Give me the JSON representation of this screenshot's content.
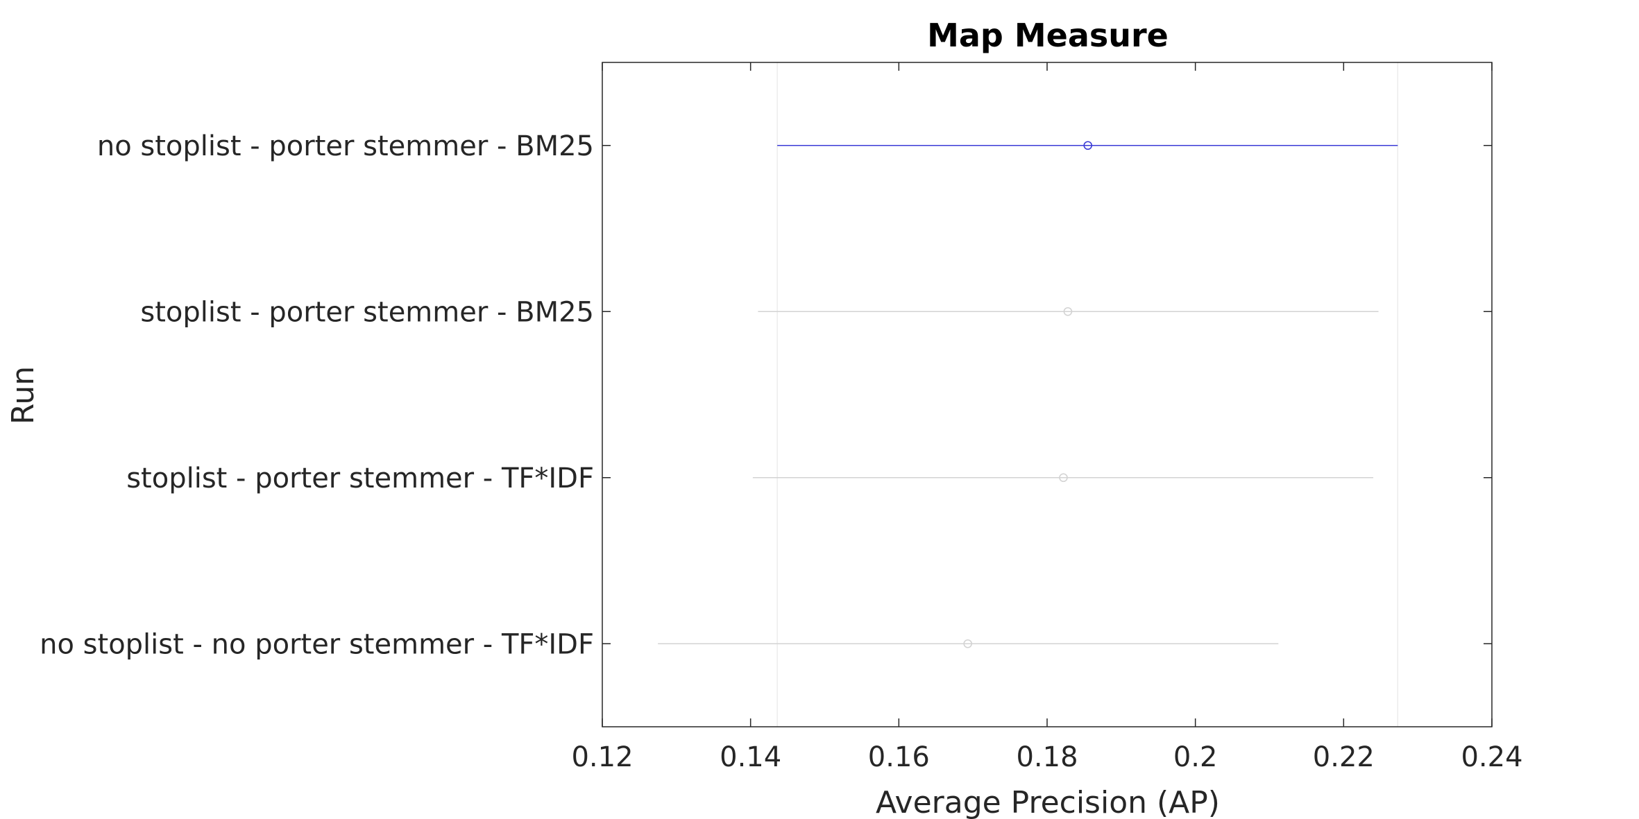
{
  "chart_data": {
    "type": "scatter",
    "title": "Map Measure",
    "xlabel": "Average Precision (AP)",
    "ylabel": "Run",
    "xlim": [
      0.12,
      0.24
    ],
    "xticks": [
      "0.12",
      "0.14",
      "0.16",
      "0.18",
      "0.2",
      "0.22",
      "0.24"
    ],
    "highlight_limits": [
      0.1436,
      0.2273
    ],
    "grid": false,
    "colors": {
      "highlight": "#3b3bd6",
      "muted": "#d3d3d3",
      "axis": "#262626",
      "reference": "#ececec"
    },
    "runs": [
      {
        "label": "no stoplist - porter stemmer - BM25",
        "mean": 0.1855,
        "lower": 0.1436,
        "upper": 0.2273,
        "highlight": true
      },
      {
        "label": "stoplist - porter stemmer - BM25",
        "mean": 0.1828,
        "lower": 0.141,
        "upper": 0.2247,
        "highlight": false
      },
      {
        "label": "stoplist - porter stemmer - TF*IDF",
        "mean": 0.1822,
        "lower": 0.1403,
        "upper": 0.224,
        "highlight": false
      },
      {
        "label": "no stoplist - no porter stemmer - TF*IDF",
        "mean": 0.1693,
        "lower": 0.1275,
        "upper": 0.2112,
        "highlight": false
      }
    ]
  }
}
